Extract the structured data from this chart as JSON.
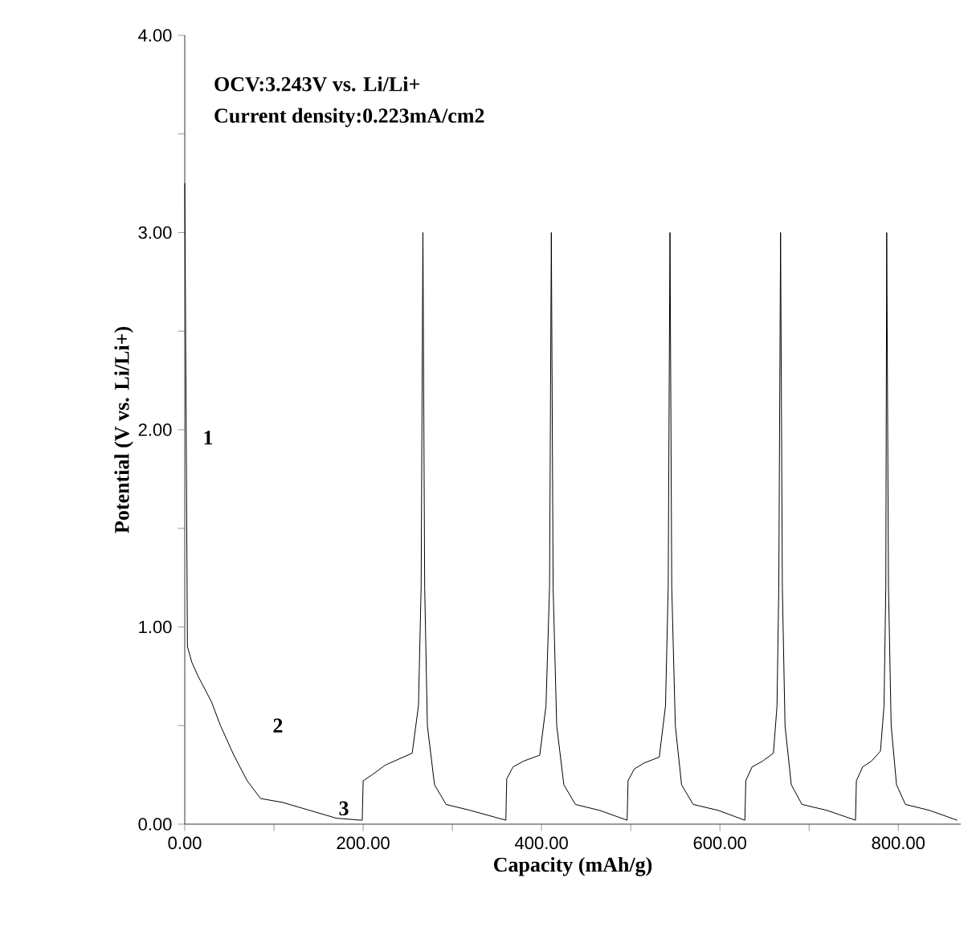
{
  "chart_data": {
    "type": "line",
    "xlabel": "Capacity (mAh/g)",
    "ylabel": "Potential (V vs. Li/Li+)",
    "annotations": [
      "OCV:3.243V vs. Li/Li+",
      "Current density:0.223mA/cm2",
      "1",
      "2",
      "3"
    ],
    "series": [
      {
        "color": "#000000",
        "x": [
          0,
          3,
          8,
          15,
          30,
          40,
          55,
          70,
          85,
          110,
          140,
          170,
          198,
          199,
          200,
          210,
          225,
          240,
          255,
          262,
          265,
          267,
          269,
          272,
          280,
          293,
          320,
          360,
          361,
          368,
          380,
          398,
          405,
          409,
          411,
          413,
          417,
          425,
          438,
          465,
          496,
          497,
          504,
          515,
          532,
          539,
          542,
          544,
          546,
          550,
          557,
          570,
          598,
          628,
          629,
          636,
          648,
          660,
          664,
          666,
          668,
          670,
          673,
          680,
          692,
          720,
          752,
          753,
          760,
          770,
          780,
          784,
          786,
          787,
          789,
          792,
          798,
          808,
          835,
          866
        ],
        "values": [
          3.25,
          0.9,
          0.82,
          0.75,
          0.62,
          0.5,
          0.35,
          0.22,
          0.13,
          0.11,
          0.07,
          0.03,
          0.02,
          0.02,
          0.22,
          0.25,
          0.3,
          0.33,
          0.36,
          0.6,
          1.2,
          3.0,
          1.2,
          0.5,
          0.2,
          0.1,
          0.07,
          0.02,
          0.23,
          0.29,
          0.32,
          0.35,
          0.6,
          1.2,
          3.0,
          1.2,
          0.5,
          0.2,
          0.1,
          0.07,
          0.02,
          0.22,
          0.28,
          0.31,
          0.34,
          0.6,
          1.2,
          3.0,
          1.2,
          0.5,
          0.2,
          0.1,
          0.07,
          0.02,
          0.22,
          0.29,
          0.32,
          0.36,
          0.6,
          1.2,
          3.0,
          1.2,
          0.5,
          0.2,
          0.1,
          0.07,
          0.02,
          0.22,
          0.29,
          0.32,
          0.37,
          0.6,
          1.2,
          3.0,
          1.2,
          0.5,
          0.2,
          0.1,
          0.07,
          0.02
        ]
      }
    ],
    "xlim": [
      0,
      870
    ],
    "ylim": [
      0,
      4
    ],
    "xticks": [
      {
        "value": 0,
        "label": "0.00"
      },
      {
        "value": 100,
        "label": null
      },
      {
        "value": 200,
        "label": "200.00"
      },
      {
        "value": 300,
        "label": null
      },
      {
        "value": 400,
        "label": "400.00"
      },
      {
        "value": 500,
        "label": null
      },
      {
        "value": 600,
        "label": "600.00"
      },
      {
        "value": 700,
        "label": null
      },
      {
        "value": 800,
        "label": "800.00"
      }
    ],
    "yticks": [
      {
        "value": 0,
        "label": "0.00"
      },
      {
        "value": 0.5,
        "label": null
      },
      {
        "value": 1,
        "label": "1.00"
      },
      {
        "value": 1.5,
        "label": null
      },
      {
        "value": 2,
        "label": "2.00"
      },
      {
        "value": 2.5,
        "label": null
      },
      {
        "value": 3,
        "label": "3.00"
      },
      {
        "value": 3.5,
        "label": null
      },
      {
        "value": 4,
        "label": "4.00"
      }
    ],
    "grid": false,
    "marker": "none",
    "line_style": "solid"
  }
}
